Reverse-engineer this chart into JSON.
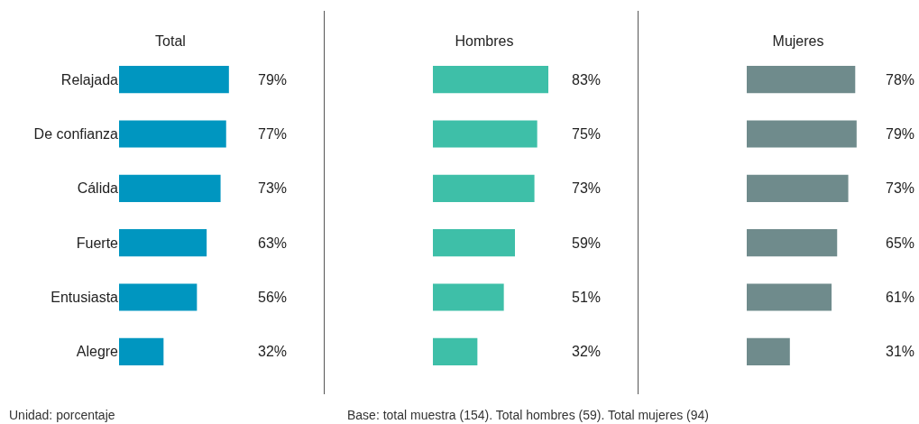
{
  "chart_data": [
    {
      "type": "bar",
      "orientation": "horizontal",
      "title": "Total",
      "categories": [
        "Relajada",
        "De confianza",
        "Cálida",
        "Fuerte",
        "Entusiasta",
        "Alegre"
      ],
      "values": [
        79,
        77,
        73,
        63,
        56,
        32
      ],
      "value_labels": [
        "79%",
        "77%",
        "73%",
        "63%",
        "56%",
        "32%"
      ],
      "color": "#0096c0",
      "tick_labels": "y",
      "grid": false,
      "annotations": [
        "Unidad: porcentaje"
      ]
    },
    {
      "type": "bar",
      "orientation": "horizontal",
      "title": "Hombres",
      "categories": [
        null,
        null,
        null,
        null,
        null,
        null
      ],
      "values": [
        83,
        75,
        73,
        59,
        51,
        32
      ],
      "value_labels": [
        "83%",
        "75%",
        "73%",
        "59%",
        "51%",
        "32%"
      ],
      "color": "#3ebfa8",
      "tick_labels": false,
      "grid": false,
      "annotations": [
        "Base: total muestra (154). Total hombres (59). Total mujeres (94)"
      ]
    },
    {
      "type": "bar",
      "orientation": "horizontal",
      "title": "Mujeres",
      "categories": [
        null,
        null,
        null,
        null,
        null,
        null
      ],
      "values": [
        78,
        79,
        73,
        65,
        61,
        31
      ],
      "value_labels": [
        "78%",
        "79%",
        "73%",
        "65%",
        "61%",
        "31%"
      ],
      "color": "#6f8b8c",
      "tick_labels": false,
      "grid": false
    }
  ]
}
